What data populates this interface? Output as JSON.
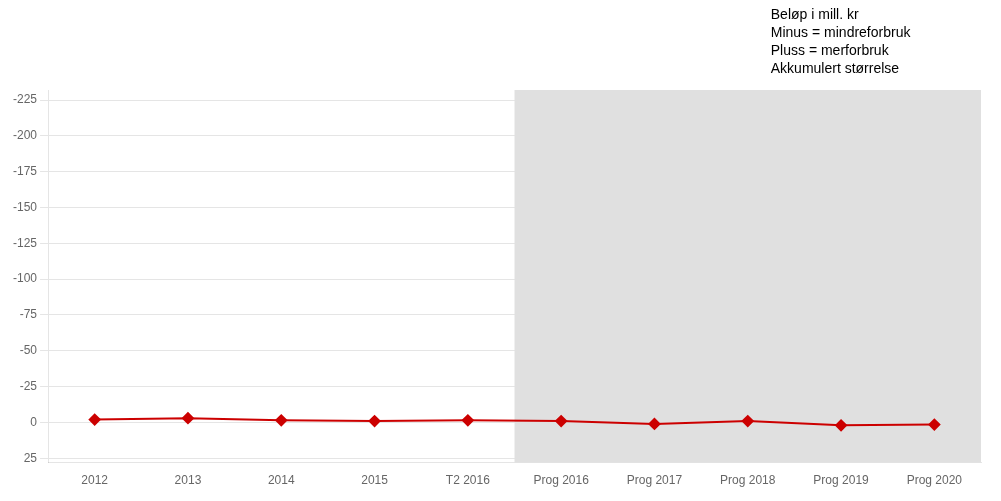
{
  "chart_data": {
    "type": "line",
    "categories": [
      "2012",
      "2013",
      "2014",
      "2015",
      "T2 2016",
      "Prog 2016",
      "Prog 2017",
      "Prog 2018",
      "Prog 2019",
      "Prog 2020"
    ],
    "values": [
      -2,
      -3,
      -1.5,
      -1,
      -1.5,
      -1,
      1,
      -1,
      2,
      1.5
    ],
    "color": "#cc0000",
    "marker": "diamond",
    "ylim": [
      28,
      -232
    ],
    "yticks": [
      -225,
      -200,
      -175,
      -150,
      -125,
      -100,
      -75,
      -50,
      -25,
      0,
      25
    ],
    "grid": "y",
    "shade": {
      "from": "Prog 2016",
      "to": "Prog 2020",
      "color": "#e0e0e0"
    },
    "annotations": [
      "Beløp i mill. kr",
      "Minus = mindreforbruk",
      "Pluss = merforbruk",
      "Akkumulert størrelse"
    ]
  }
}
